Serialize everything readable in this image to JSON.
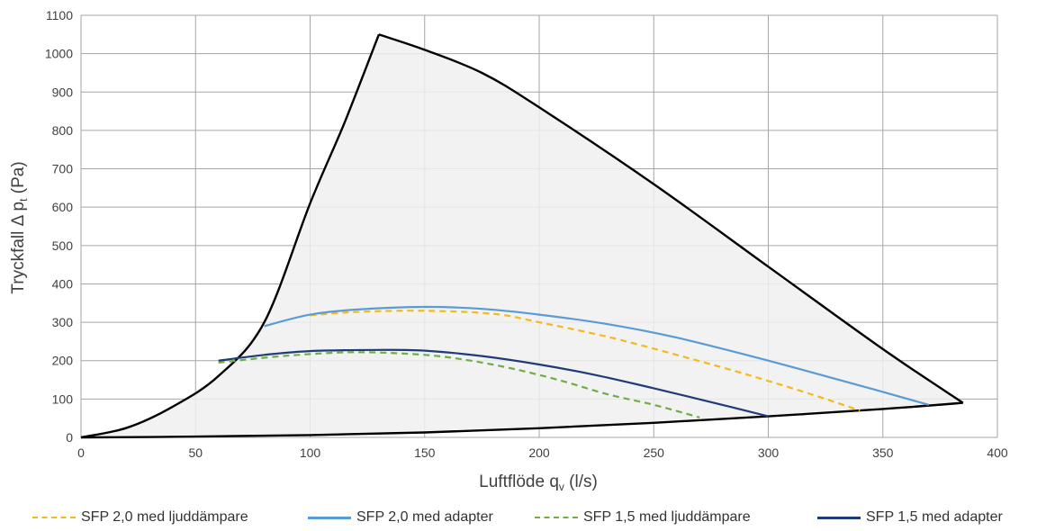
{
  "chart_data": {
    "type": "line",
    "xlabel": "Luftflöde  q",
    "xlabel_sub": "v",
    "xlabel_unit": " (l/s)",
    "ylabel": "Tryckfall  Δ  p",
    "ylabel_sub": "t",
    "ylabel_unit": "   (Pa)",
    "xlim": [
      0,
      400
    ],
    "ylim": [
      0,
      1100
    ],
    "x_ticks": [
      0,
      50,
      100,
      150,
      200,
      250,
      300,
      350,
      400
    ],
    "y_ticks": [
      0,
      100,
      200,
      300,
      400,
      500,
      600,
      700,
      800,
      900,
      1000,
      1100
    ],
    "grid": true,
    "legend_position": "bottom",
    "operating_area": {
      "fill_color": "#eef0ef",
      "upper_boundary": {
        "x": [
          0,
          20,
          40,
          60,
          80,
          100,
          115,
          130,
          150,
          175,
          200,
          250,
          300,
          350,
          385
        ],
        "y": [
          0,
          25,
          80,
          160,
          300,
          610,
          820,
          1050,
          1010,
          950,
          860,
          660,
          445,
          230,
          90
        ]
      },
      "lower_boundary": {
        "x": [
          0,
          50,
          100,
          150,
          200,
          250,
          300,
          350,
          385
        ],
        "y": [
          0,
          2,
          6,
          13,
          24,
          38,
          55,
          74,
          90
        ]
      }
    },
    "series": [
      {
        "name": "SFP 2,0 med ljuddämpare",
        "color": "#f6b91b",
        "dash": true,
        "x": [
          100,
          120,
          150,
          180,
          200,
          230,
          260,
          290,
          320,
          340
        ],
        "y": [
          318,
          327,
          330,
          322,
          300,
          262,
          215,
          165,
          110,
          70
        ]
      },
      {
        "name": "SFP 2,0 med adapter",
        "color": "#5b9bd5",
        "dash": false,
        "x": [
          80,
          100,
          120,
          150,
          175,
          200,
          230,
          260,
          300,
          340,
          370
        ],
        "y": [
          290,
          320,
          333,
          340,
          335,
          320,
          295,
          260,
          200,
          135,
          85
        ]
      },
      {
        "name": "SFP 1,5 med ljuddämpare",
        "color": "#70ad47",
        "dash": true,
        "x": [
          60,
          90,
          120,
          150,
          170,
          190,
          210,
          230,
          250,
          270
        ],
        "y": [
          195,
          213,
          222,
          215,
          200,
          177,
          147,
          112,
          85,
          52
        ]
      },
      {
        "name": "SFP 1,5 med adapter",
        "color": "#1f3c78",
        "dash": false,
        "x": [
          60,
          80,
          100,
          130,
          150,
          175,
          200,
          225,
          250,
          275,
          300
        ],
        "y": [
          200,
          215,
          225,
          228,
          226,
          212,
          190,
          162,
          128,
          92,
          55
        ]
      }
    ]
  }
}
